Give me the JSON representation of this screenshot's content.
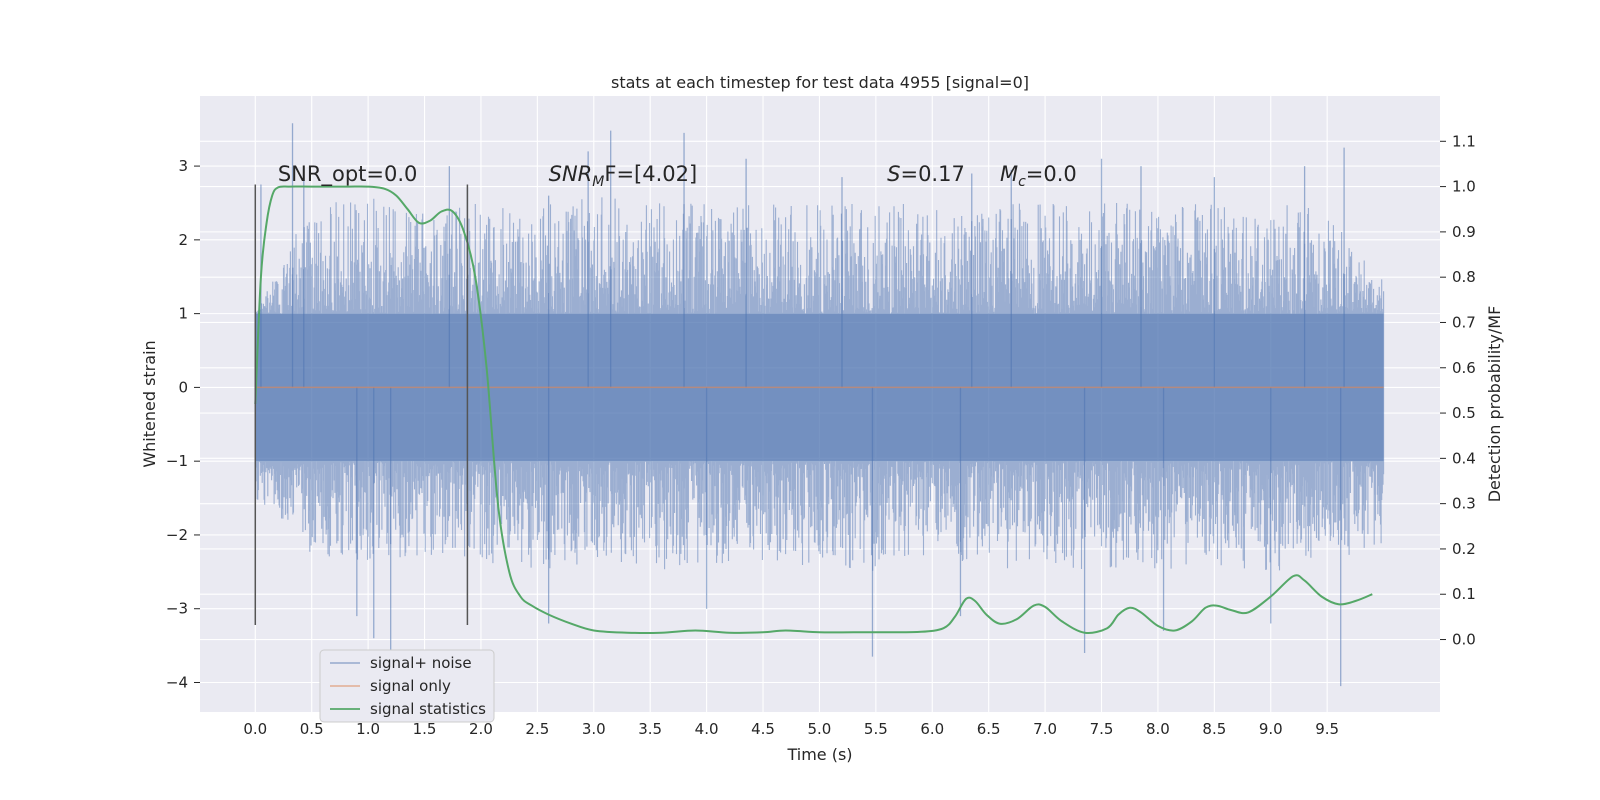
{
  "chart_data": {
    "type": "line",
    "title": "stats at each timestep for test data 4955 [signal=0]",
    "xlabel": "Time (s)",
    "ylabel": "Whitened strain",
    "y2label": "Detection probability/MF",
    "xlim": [
      -0.49,
      10.5
    ],
    "ylim": [
      -4.4,
      3.95
    ],
    "y2lim": [
      -0.16,
      1.2
    ],
    "x_ticks": [
      "0.0",
      "0.5",
      "1.0",
      "1.5",
      "2.0",
      "2.5",
      "3.0",
      "3.5",
      "4.0",
      "4.5",
      "5.0",
      "5.5",
      "6.0",
      "6.5",
      "7.0",
      "7.5",
      "8.0",
      "8.5",
      "9.0",
      "9.5"
    ],
    "y_ticks": [
      "3",
      "2",
      "1",
      "0",
      "−1",
      "−2",
      "−3",
      "−4"
    ],
    "y2_ticks": [
      "1.1",
      "1.0",
      "0.9",
      "0.8",
      "0.7",
      "0.6",
      "0.5",
      "0.4",
      "0.3",
      "0.2",
      "0.1",
      "0.0"
    ],
    "grid": true,
    "legend_placement": "lower-left",
    "vertical_lines": [
      0.0,
      1.88
    ],
    "vertical_line_range": [
      -3.22,
      2.75
    ],
    "annotations": [
      {
        "id": "snr-opt",
        "text": "SNR_opt=0.0",
        "x": 0.2,
        "y": 2.8
      },
      {
        "id": "snr-mf",
        "text": "SNR",
        "sub": "M",
        "tail": "F=[4.02]",
        "x": 2.6,
        "y": 2.8
      },
      {
        "id": "s-val",
        "text": "S",
        "tail": "=0.17",
        "x": 5.6,
        "y": 2.8
      },
      {
        "id": "mc-val",
        "text": "M",
        "sub": "c",
        "tail": "=0.0",
        "x": 6.6,
        "y": 2.8
      }
    ],
    "series": [
      {
        "name": "signal+ noise",
        "color": "#4c72b0",
        "axis": "left",
        "x_range": [
          0.0,
          10.0
        ],
        "envelope": [
          {
            "x": 0.0,
            "lo": -1.6,
            "hi": 1.0
          },
          {
            "x": 0.5,
            "lo": -2.3,
            "hi": 2.5
          },
          {
            "x": 1.0,
            "lo": -2.4,
            "hi": 2.6
          },
          {
            "x": 1.5,
            "lo": -2.3,
            "hi": 2.4
          },
          {
            "x": 2.0,
            "lo": -2.4,
            "hi": 2.6
          },
          {
            "x": 2.5,
            "lo": -2.5,
            "hi": 2.5
          },
          {
            "x": 3.0,
            "lo": -2.4,
            "hi": 2.6
          },
          {
            "x": 3.5,
            "lo": -2.5,
            "hi": 2.5
          },
          {
            "x": 4.0,
            "lo": -2.4,
            "hi": 2.5
          },
          {
            "x": 4.5,
            "lo": -2.5,
            "hi": 2.5
          },
          {
            "x": 5.0,
            "lo": -2.4,
            "hi": 2.5
          },
          {
            "x": 5.5,
            "lo": -2.5,
            "hi": 2.5
          },
          {
            "x": 6.0,
            "lo": -2.4,
            "hi": 2.5
          },
          {
            "x": 6.5,
            "lo": -2.5,
            "hi": 2.5
          },
          {
            "x": 7.0,
            "lo": -2.4,
            "hi": 2.5
          },
          {
            "x": 7.5,
            "lo": -2.5,
            "hi": 2.5
          },
          {
            "x": 8.0,
            "lo": -2.5,
            "hi": 2.5
          },
          {
            "x": 8.5,
            "lo": -2.4,
            "hi": 2.5
          },
          {
            "x": 9.0,
            "lo": -2.5,
            "hi": 2.5
          },
          {
            "x": 9.5,
            "lo": -2.4,
            "hi": 2.5
          },
          {
            "x": 10.0,
            "lo": -2.1,
            "hi": 1.5
          }
        ],
        "spikes": [
          [
            0.33,
            3.58
          ],
          [
            0.43,
            3.0
          ],
          [
            0.05,
            2.75
          ],
          [
            1.72,
            3.0
          ],
          [
            1.88,
            2.7
          ],
          [
            2.6,
            2.6
          ],
          [
            2.95,
            3.2
          ],
          [
            3.15,
            3.48
          ],
          [
            3.8,
            3.45
          ],
          [
            4.35,
            3.1
          ],
          [
            5.2,
            2.85
          ],
          [
            6.35,
            2.9
          ],
          [
            6.7,
            2.95
          ],
          [
            7.5,
            3.1
          ],
          [
            7.85,
            3.0
          ],
          [
            8.5,
            2.85
          ],
          [
            9.3,
            3.0
          ],
          [
            9.65,
            3.25
          ],
          [
            1.2,
            -3.7
          ],
          [
            0.9,
            -3.1
          ],
          [
            2.6,
            -3.2
          ],
          [
            4.0,
            -3.0
          ],
          [
            5.47,
            -3.65
          ],
          [
            6.25,
            -3.1
          ],
          [
            7.35,
            -3.6
          ],
          [
            8.05,
            -3.3
          ],
          [
            9.0,
            -3.2
          ],
          [
            9.62,
            -4.05
          ],
          [
            1.05,
            -3.4
          ]
        ]
      },
      {
        "name": "signal only",
        "color": "#dd8452",
        "axis": "left",
        "x": [
          0.0,
          10.0
        ],
        "y": [
          0.0,
          0.0
        ]
      },
      {
        "name": "signal statistics",
        "color": "#55a868",
        "axis": "right",
        "x": [
          0.0,
          0.05,
          0.1,
          0.15,
          0.2,
          0.3,
          0.5,
          0.8,
          1.0,
          1.15,
          1.25,
          1.35,
          1.45,
          1.55,
          1.65,
          1.75,
          1.85,
          1.95,
          2.05,
          2.15,
          2.25,
          2.35,
          2.45,
          2.6,
          2.8,
          3.0,
          3.3,
          3.6,
          3.9,
          4.2,
          4.5,
          4.7,
          5.0,
          5.3,
          5.6,
          5.9,
          6.1,
          6.2,
          6.3,
          6.38,
          6.48,
          6.6,
          6.75,
          6.9,
          7.0,
          7.15,
          7.35,
          7.55,
          7.65,
          7.75,
          7.85,
          8.0,
          8.15,
          8.3,
          8.42,
          8.52,
          8.65,
          8.8,
          9.0,
          9.2,
          9.3,
          9.45,
          9.6,
          9.75,
          9.9
        ],
        "y": [
          0.52,
          0.8,
          0.92,
          0.98,
          0.998,
          1.0,
          1.0,
          1.0,
          1.0,
          0.995,
          0.98,
          0.95,
          0.92,
          0.925,
          0.945,
          0.945,
          0.9,
          0.8,
          0.6,
          0.3,
          0.15,
          0.095,
          0.075,
          0.055,
          0.035,
          0.02,
          0.015,
          0.015,
          0.02,
          0.015,
          0.016,
          0.02,
          0.016,
          0.016,
          0.016,
          0.017,
          0.025,
          0.05,
          0.09,
          0.085,
          0.055,
          0.035,
          0.045,
          0.075,
          0.072,
          0.04,
          0.015,
          0.025,
          0.055,
          0.07,
          0.06,
          0.03,
          0.02,
          0.04,
          0.07,
          0.075,
          0.065,
          0.06,
          0.095,
          0.14,
          0.13,
          0.095,
          0.078,
          0.085,
          0.1
        ]
      }
    ]
  }
}
